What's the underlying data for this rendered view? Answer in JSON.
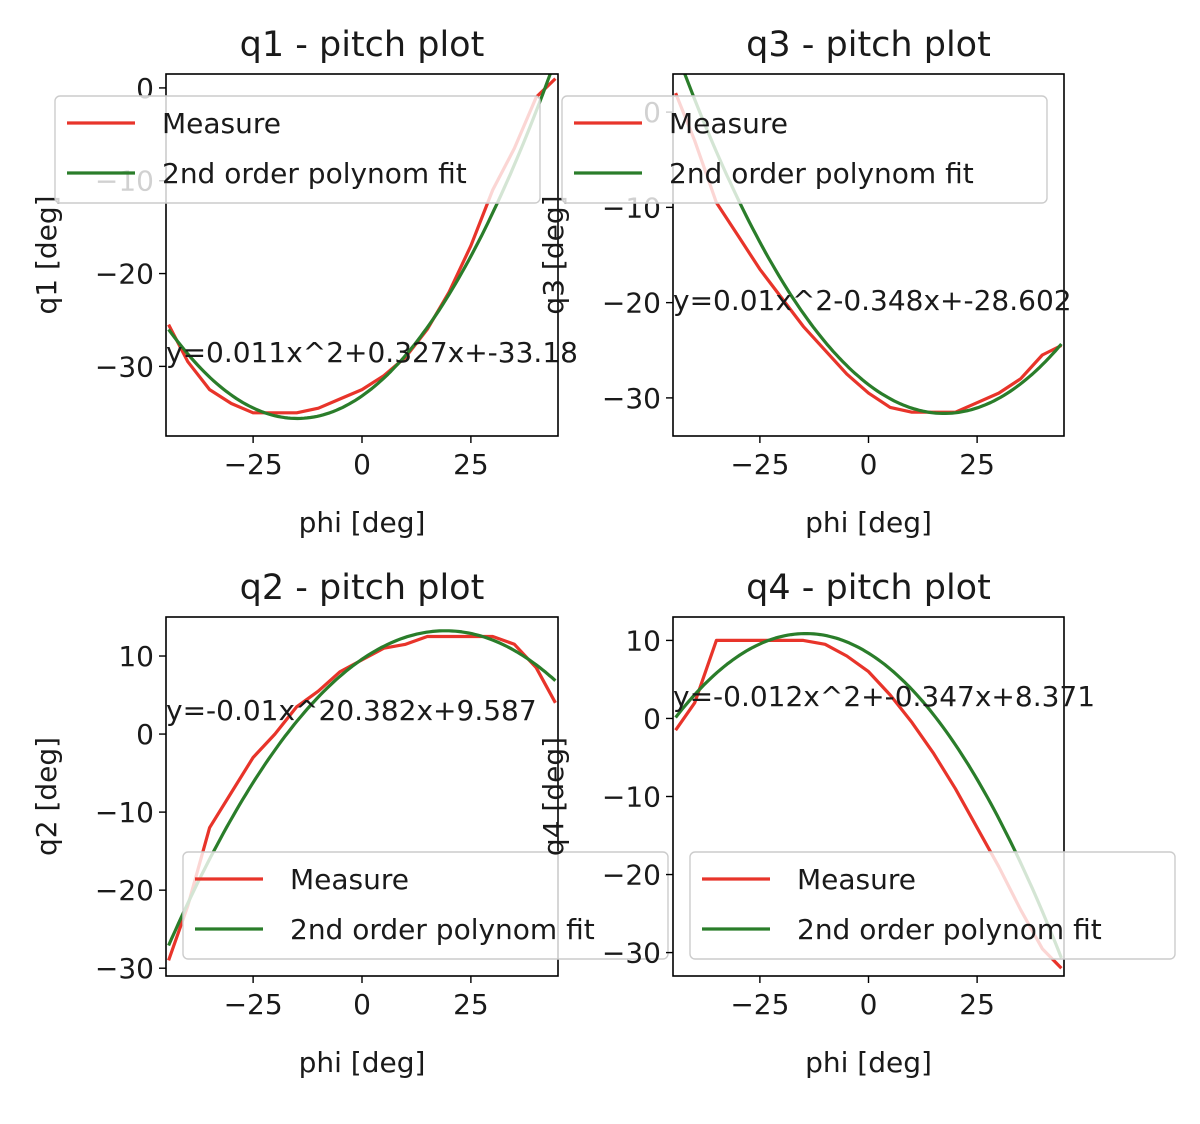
{
  "colors": {
    "measure": "#e8342a",
    "fit": "#2a7d2a",
    "axis": "#000000",
    "legend_bg": "#ffffff",
    "legend_border": "#cccccc"
  },
  "chart_data": [
    {
      "type": "line",
      "title": "q1 - pitch plot",
      "xlabel": "phi [deg]",
      "ylabel": "q1 [deg]",
      "xlim": [
        -45,
        45
      ],
      "ylim": [
        -37.5,
        1.5
      ],
      "xticks": [
        -25,
        0,
        25
      ],
      "yticks": [
        0,
        -10,
        -20,
        -30
      ],
      "annotation": "y=0.011x^2+0.327x+-33.18",
      "legend": {
        "placement": "upper left",
        "entries": [
          "Measure",
          "2nd order polynom fit"
        ]
      },
      "series": [
        {
          "name": "Measure",
          "style": "line",
          "color": "#e8342a",
          "x": [
            -44.4,
            -40,
            -35,
            -30,
            -25,
            -20,
            -15,
            -10,
            -5,
            0,
            5,
            10,
            15,
            20,
            25,
            30,
            35,
            40,
            44.4
          ],
          "y": [
            -25.5,
            -29.5,
            -32.5,
            -34,
            -35,
            -35,
            -35,
            -34.5,
            -33.5,
            -32.5,
            -31,
            -29,
            -26,
            -22,
            -17,
            -11,
            -6.5,
            -1,
            1
          ]
        },
        {
          "name": "2nd order polynom fit",
          "style": "line",
          "color": "#2a7d2a",
          "coefficients": [
            0.011,
            0.327,
            -33.18
          ],
          "x": [
            -44.4,
            44.4
          ]
        }
      ]
    },
    {
      "type": "line",
      "title": "q3 - pitch plot",
      "xlabel": "phi [deg]",
      "ylabel": "q3 [deg]",
      "xlim": [
        -45,
        45
      ],
      "ylim": [
        -34,
        4
      ],
      "xticks": [
        -25,
        0,
        25
      ],
      "yticks": [
        0,
        -10,
        -20,
        -30
      ],
      "annotation": "y=0.01x^2-0.348x+-28.602",
      "legend": {
        "placement": "upper left",
        "entries": [
          "Measure",
          "2nd order polynom fit"
        ]
      },
      "series": [
        {
          "name": "Measure",
          "style": "line",
          "color": "#e8342a",
          "x": [
            -44.4,
            -40,
            -35,
            -30,
            -25,
            -20,
            -15,
            -10,
            -5,
            0,
            5,
            10,
            15,
            20,
            25,
            30,
            35,
            40,
            44.4
          ],
          "y": [
            2,
            -3,
            -9.5,
            -13,
            -16.5,
            -19.5,
            -22.5,
            -25,
            -27.5,
            -29.5,
            -31,
            -31.5,
            -31.5,
            -31.5,
            -30.5,
            -29.5,
            -28,
            -25.5,
            -24.5
          ]
        },
        {
          "name": "2nd order polynom fit",
          "style": "line",
          "color": "#2a7d2a",
          "coefficients": [
            0.01,
            -0.348,
            -28.602
          ],
          "x": [
            -44.4,
            44.4
          ]
        }
      ]
    },
    {
      "type": "line",
      "title": "q2 - pitch plot",
      "xlabel": "phi [deg]",
      "ylabel": "q2 [deg]",
      "xlim": [
        -45,
        45
      ],
      "ylim": [
        -31,
        15
      ],
      "xticks": [
        -25,
        0,
        25
      ],
      "yticks": [
        10,
        0,
        -10,
        -20,
        -30
      ],
      "annotation": "y=-0.01x^20.382x+9.587",
      "legend": {
        "placement": "lower right",
        "entries": [
          "Measure",
          "2nd order polynom fit"
        ]
      },
      "series": [
        {
          "name": "Measure",
          "style": "line",
          "color": "#e8342a",
          "x": [
            -44.4,
            -40,
            -35,
            -30,
            -25,
            -20,
            -15,
            -10,
            -5,
            0,
            5,
            10,
            15,
            20,
            25,
            30,
            35,
            40,
            44.4
          ],
          "y": [
            -29,
            -22,
            -12,
            -7.5,
            -3,
            0,
            3.5,
            5.5,
            8,
            9.5,
            11,
            11.5,
            12.5,
            12.5,
            12.5,
            12.5,
            11.5,
            8.5,
            4
          ]
        },
        {
          "name": "2nd order polynom fit",
          "style": "line",
          "color": "#2a7d2a",
          "coefficients": [
            -0.01,
            0.382,
            9.587
          ],
          "x": [
            -44.4,
            44.4
          ]
        }
      ]
    },
    {
      "type": "line",
      "title": "q4 - pitch plot",
      "xlabel": "phi [deg]",
      "ylabel": "q4 [deg]",
      "xlim": [
        -45,
        45
      ],
      "ylim": [
        -33,
        13
      ],
      "xticks": [
        -25,
        0,
        25
      ],
      "yticks": [
        10,
        0,
        -10,
        -20,
        -30
      ],
      "annotation": "y=-0.012x^2+-0.347x+8.371",
      "legend": {
        "placement": "lower right",
        "entries": [
          "Measure",
          "2nd order polynom fit"
        ]
      },
      "series": [
        {
          "name": "Measure",
          "style": "line",
          "color": "#e8342a",
          "x": [
            -44.4,
            -40,
            -35,
            -30,
            -25,
            -20,
            -15,
            -10,
            -5,
            0,
            5,
            10,
            15,
            20,
            25,
            30,
            35,
            40,
            44.4
          ],
          "y": [
            -1.5,
            2,
            10,
            10,
            10,
            10,
            10,
            9.5,
            8,
            6,
            3,
            -0.5,
            -4.5,
            -9,
            -14,
            -19,
            -24.5,
            -29.5,
            -32
          ]
        },
        {
          "name": "2nd order polynom fit",
          "style": "line",
          "color": "#2a7d2a",
          "coefficients": [
            -0.012,
            -0.347,
            8.371
          ],
          "x": [
            -44.4,
            44.4
          ]
        }
      ]
    }
  ]
}
